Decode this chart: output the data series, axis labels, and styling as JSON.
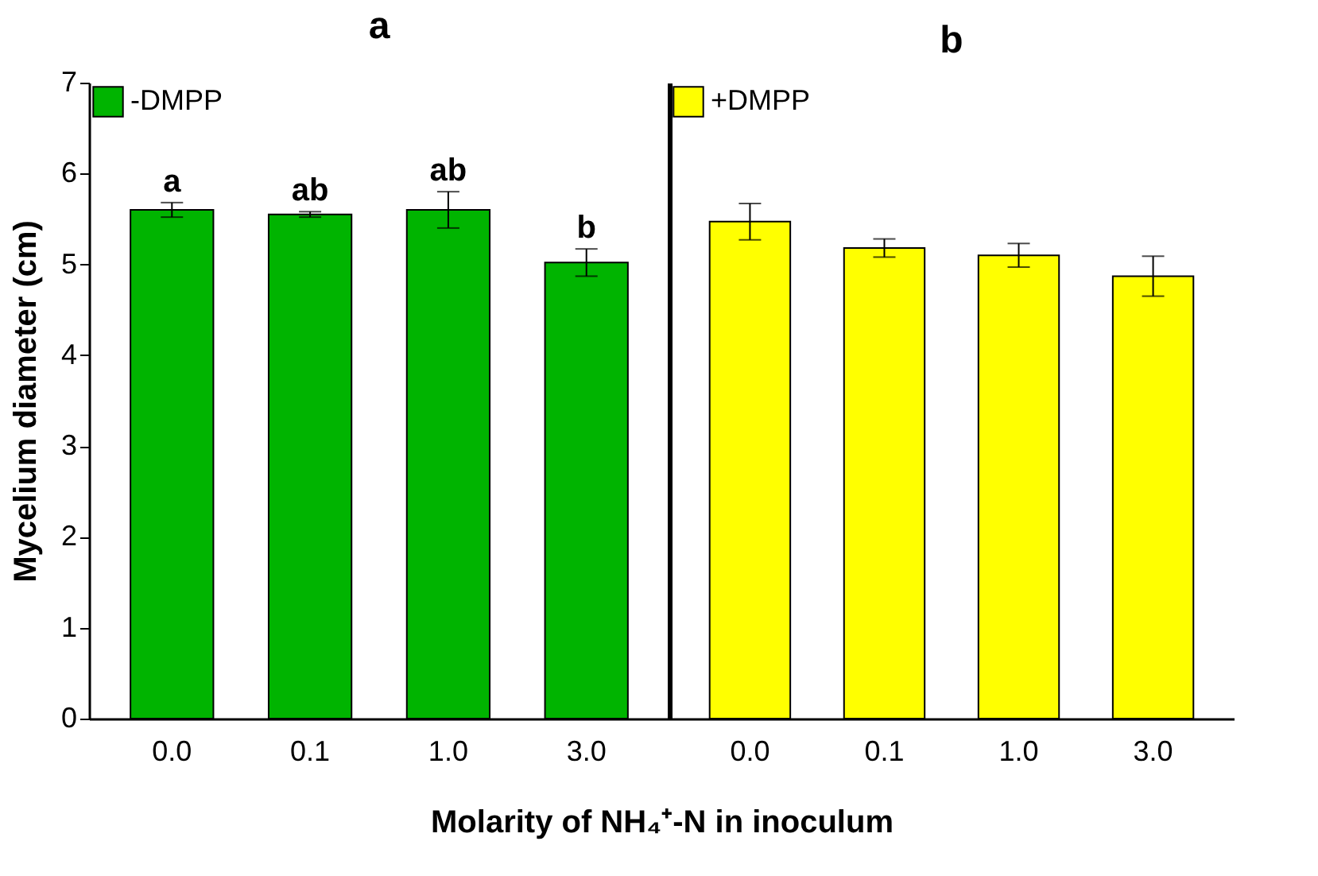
{
  "chart_data": [
    {
      "type": "bar",
      "title": "a",
      "ylabel": "Mycelium diameter (cm)",
      "xlabel": "Molarity of NH₄⁺-N in inoculum",
      "categories": [
        "0.0",
        "0.1",
        "1.0",
        "3.0"
      ],
      "series": [
        {
          "name": "-DMPP",
          "color": "#00b400",
          "values": [
            5.6,
            5.55,
            5.6,
            5.02
          ],
          "errors": [
            0.08,
            0.03,
            0.2,
            0.15
          ]
        }
      ],
      "ylim": [
        0,
        7
      ],
      "yticks": [
        0,
        1,
        2,
        3,
        4,
        5,
        6,
        7
      ],
      "grid": false,
      "legend": "top left",
      "annotations": [
        "a",
        "ab",
        "ab",
        "b"
      ]
    },
    {
      "type": "bar",
      "title": "b",
      "categories": [
        "0.0",
        "0.1",
        "1.0",
        "3.0"
      ],
      "series": [
        {
          "name": "+DMPP",
          "color": "#ffff00",
          "values": [
            5.47,
            5.18,
            5.1,
            4.87
          ],
          "errors": [
            0.2,
            0.1,
            0.13,
            0.22
          ]
        }
      ],
      "ylim": [
        0,
        7
      ],
      "yticks": [
        0,
        1,
        2,
        3,
        4,
        5,
        6,
        7
      ],
      "grid": false,
      "legend": "top left",
      "tick_labels": "x"
    }
  ]
}
